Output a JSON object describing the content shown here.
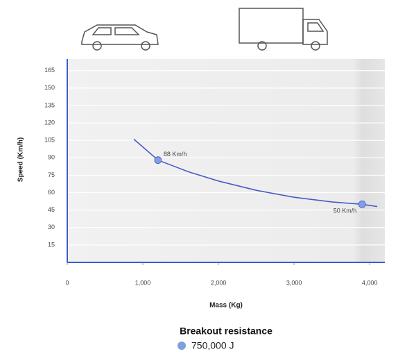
{
  "chart_data": {
    "type": "line",
    "x_label": "Mass (Kg)",
    "y_label": "Speed (Km/h)",
    "legend_title": "Breakout resistance",
    "series": [
      {
        "name": "750,000 J",
        "color": "#4a5bc4",
        "marker_color": "#7f9fe2",
        "x": [
          880,
          1200,
          1600,
          2000,
          2500,
          3000,
          3500,
          3900,
          4100
        ],
        "values": [
          106,
          88,
          78,
          70,
          62,
          56,
          52,
          50,
          48
        ]
      }
    ],
    "points": [
      {
        "x": 1200,
        "y": 88,
        "label": "88 Km/h"
      },
      {
        "x": 3900,
        "y": 50,
        "label": "50 Km/h"
      }
    ],
    "xlim": [
      0,
      4200
    ],
    "xticks": [
      0,
      {
        "value": 1000,
        "label": "1,000"
      },
      {
        "value": 2000,
        "label": "2,000"
      },
      {
        "value": 3000,
        "label": "3,000"
      },
      {
        "value": 4000,
        "label": "4,000"
      }
    ],
    "ylim": [
      0,
      175
    ],
    "yticks": [
      15,
      30,
      45,
      60,
      75,
      90,
      105,
      120,
      135,
      150,
      165
    ],
    "grid": true
  }
}
